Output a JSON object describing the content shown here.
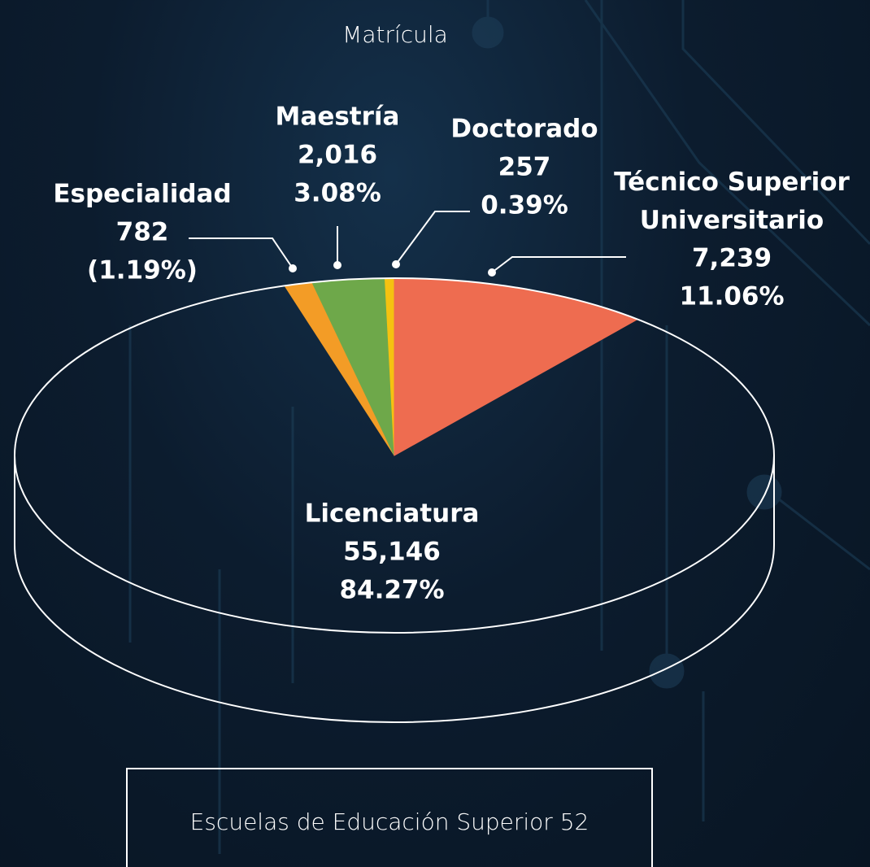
{
  "chart_data": {
    "type": "pie",
    "title": "Matrícula",
    "categories": [
      "Especialidad",
      "Maestría",
      "Doctorado",
      "Técnico Superior Universitario",
      "Licenciatura"
    ],
    "values": [
      782,
      2016,
      257,
      7239,
      55146
    ],
    "value_labels": [
      "782",
      "2,016",
      "257",
      "7,239",
      "55,146"
    ],
    "percentages": [
      1.19,
      3.08,
      0.39,
      11.06,
      84.27
    ],
    "percentage_labels": [
      "(1.19%)",
      "3.08%",
      "0.39%",
      "11.06%",
      "84.27%"
    ],
    "colors": [
      "#f39c26",
      "#6ea84a",
      "#f5c211",
      "#ee6c50",
      "transparent"
    ]
  },
  "footer": {
    "label": "Escuelas de Educación Superior",
    "value": 52
  }
}
